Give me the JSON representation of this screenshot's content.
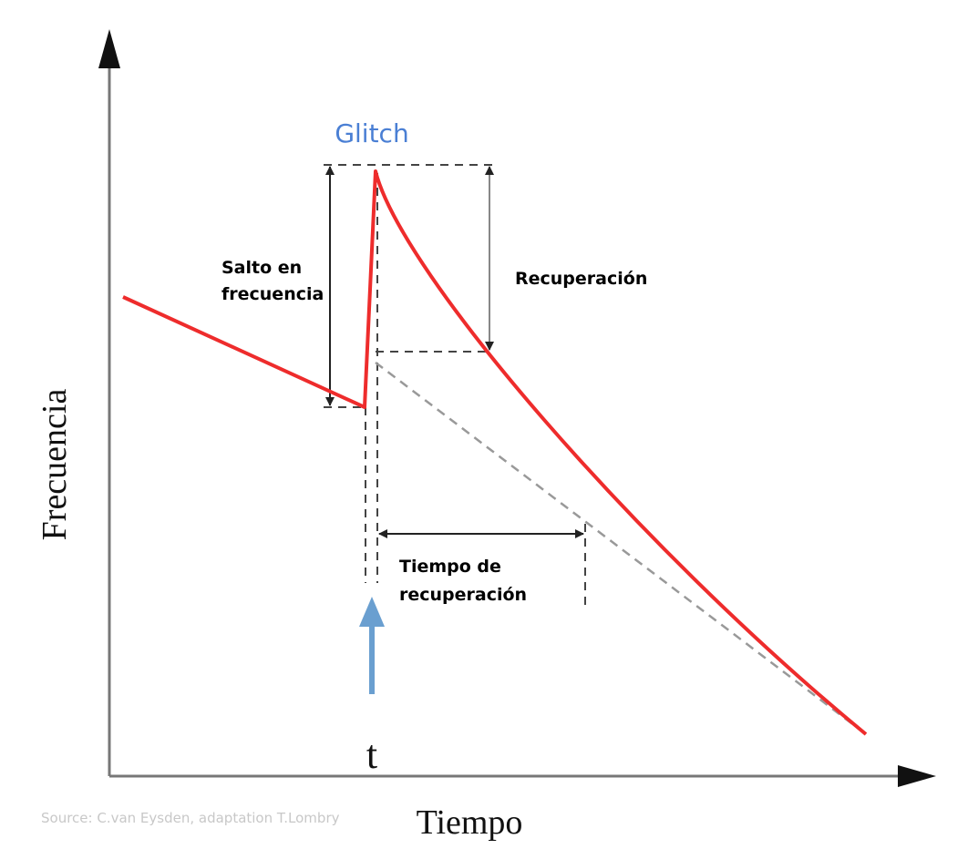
{
  "axes": {
    "y_label": "Frecuencia",
    "x_label": "Tiempo"
  },
  "labels": {
    "glitch": "Glitch",
    "jump": {
      "lines": [
        "Salto en",
        "frecuencia"
      ]
    },
    "recovery": "Recuperación",
    "recovery_time": {
      "lines": [
        "Tiempo de",
        "recuperación"
      ]
    },
    "time_marker": "t"
  },
  "source": "Source: C.van Eysden, adaptation T.Lombry"
}
